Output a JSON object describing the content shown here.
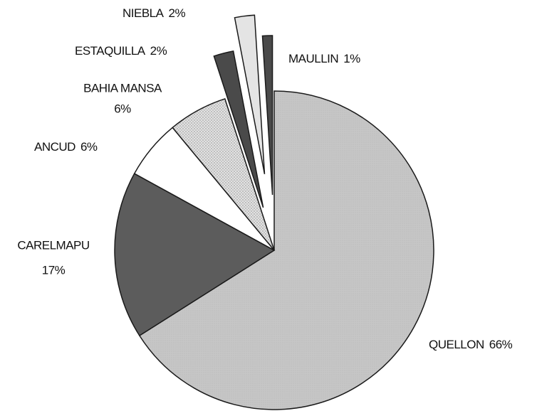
{
  "chart_data": {
    "type": "pie",
    "categories": [
      "QUELLON",
      "CARELMAPU",
      "ANCUD",
      "BAHIA MANSA",
      "ESTAQUILLA",
      "NIEBLA",
      "MAULLIN"
    ],
    "values": [
      66,
      17,
      6,
      6,
      2,
      2,
      1
    ],
    "value_labels": [
      "66%",
      "17%",
      "6%",
      "6%",
      "2%",
      "2%",
      "1%"
    ],
    "colors": [
      "#c6c6c6",
      "#5c5c5c",
      "#ffffff",
      "#d9d9d9",
      "#4a4a4a",
      "#e4e4e4",
      "#4a4a4a"
    ]
  }
}
